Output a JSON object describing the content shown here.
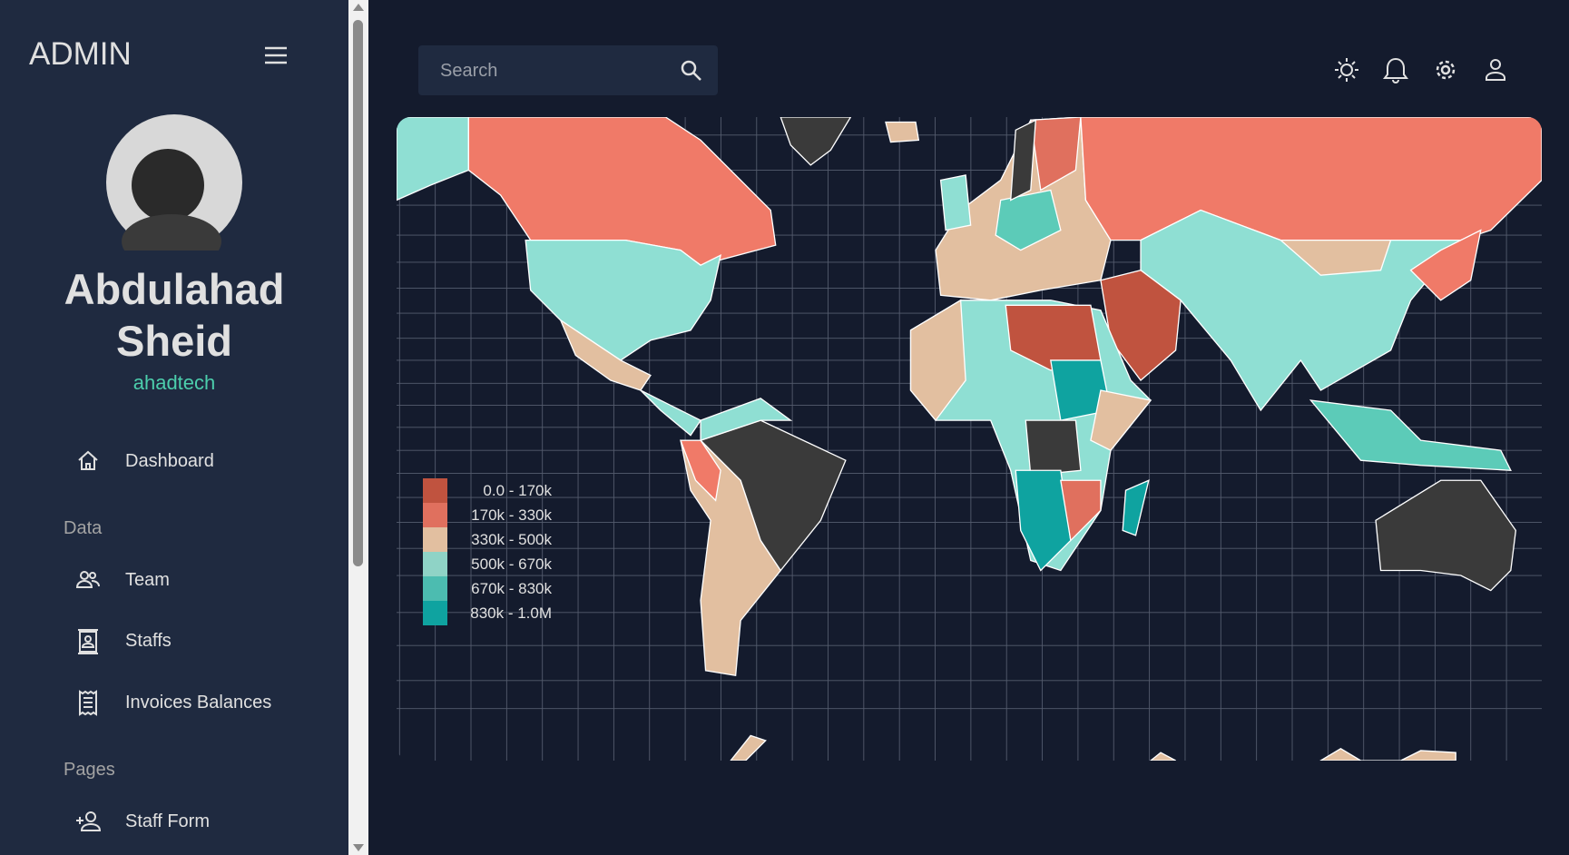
{
  "sidebar": {
    "brand": "ADMIN",
    "user_name": "Abdulahad Sheid",
    "user_role": "ahadtech",
    "nav": [
      {
        "label": "Dashboard",
        "icon": "home"
      },
      {
        "heading": "Data"
      },
      {
        "label": "Team",
        "icon": "team"
      },
      {
        "label": "Staffs",
        "icon": "contacts"
      },
      {
        "label": "Invoices Balances",
        "icon": "receipt"
      },
      {
        "heading": "Pages"
      },
      {
        "label": "Staff Form",
        "icon": "person-add"
      }
    ]
  },
  "topbar": {
    "search_placeholder": "Search"
  },
  "map": {
    "legend": [
      {
        "label": "0.0 - 170k",
        "color": "#c0533f"
      },
      {
        "label": "170k - 330k",
        "color": "#e0705e"
      },
      {
        "label": "330k - 500k",
        "color": "#e2bfa0"
      },
      {
        "label": "500k - 670k",
        "color": "#8fd3c6"
      },
      {
        "label": "670k - 830k",
        "color": "#4cbcb0"
      },
      {
        "label": "830k - 1.0M",
        "color": "#0fa3a0"
      }
    ]
  }
}
